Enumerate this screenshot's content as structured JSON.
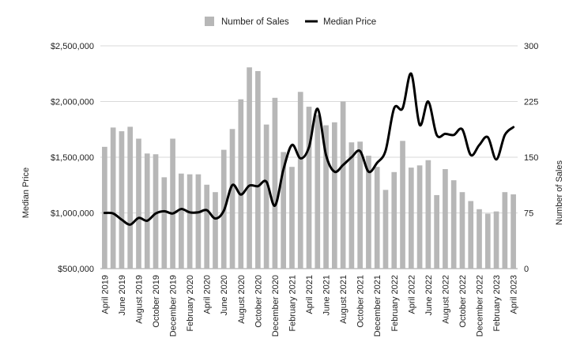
{
  "chart_data": {
    "type": "bar",
    "categories": [
      "April 2019",
      "May 2019",
      "June 2019",
      "July 2019",
      "August 2019",
      "September 2019",
      "October 2019",
      "November 2019",
      "December 2019",
      "January 2020",
      "February 2020",
      "March 2020",
      "April 2020",
      "May 2020",
      "June 2020",
      "July 2020",
      "August 2020",
      "September 2020",
      "October 2020",
      "November 2020",
      "December 2020",
      "January 2021",
      "February 2021",
      "March 2021",
      "April 2021",
      "May 2021",
      "June 2021",
      "July 2021",
      "August 2021",
      "September 2021",
      "October 2021",
      "November 2021",
      "December 2021",
      "January 2022",
      "February 2022",
      "March 2022",
      "April 2022",
      "May 2022",
      "June 2022",
      "July 2022",
      "August 2022",
      "September 2022",
      "October 2022",
      "November 2022",
      "December 2022",
      "January 2023",
      "February 2023",
      "March 2023",
      "April 2023"
    ],
    "x_tick_labels": [
      "April 2019",
      "June 2019",
      "August 2019",
      "October 2019",
      "December 2019",
      "February 2020",
      "April 2020",
      "June 2020",
      "August 2020",
      "October 2020",
      "December 2020",
      "February 2021",
      "April 2021",
      "June 2021",
      "August 2021",
      "October 2021",
      "December 2021",
      "February 2022",
      "April 2022",
      "June 2022",
      "August 2022",
      "October 2022",
      "December 2022",
      "February 2023",
      "April 2023"
    ],
    "series": [
      {
        "name": "Number of Sales",
        "type": "bar",
        "axis": "right",
        "color": "#b7b7b7",
        "values": [
          164,
          190,
          185,
          191,
          175,
          155,
          154,
          123,
          175,
          128,
          127,
          127,
          113,
          103,
          160,
          188,
          228,
          271,
          266,
          194,
          230,
          157,
          137,
          238,
          218,
          207,
          193,
          197,
          225,
          170,
          171,
          152,
          137,
          106,
          130,
          172,
          136,
          139,
          146,
          99,
          134,
          119,
          103,
          91,
          80,
          74,
          77,
          103,
          100
        ]
      },
      {
        "name": "Median Price",
        "type": "line",
        "axis": "left",
        "color": "#000000",
        "values": [
          1000000,
          995000,
          940000,
          895000,
          955000,
          930000,
          995000,
          1015000,
          995000,
          1035000,
          1005000,
          1005000,
          1025000,
          950000,
          1020000,
          1250000,
          1165000,
          1245000,
          1240000,
          1280000,
          1065000,
          1390000,
          1610000,
          1490000,
          1590000,
          1935000,
          1520000,
          1370000,
          1430000,
          1500000,
          1555000,
          1370000,
          1450000,
          1560000,
          1940000,
          1940000,
          2250000,
          1790000,
          2000000,
          1700000,
          1710000,
          1700000,
          1750000,
          1520000,
          1610000,
          1680000,
          1480000,
          1700000,
          1770000
        ]
      }
    ],
    "y_left": {
      "label": "Median Price",
      "min": 500000,
      "max": 2500000,
      "ticks": [
        500000,
        1000000,
        1500000,
        2000000,
        2500000
      ],
      "tick_labels": [
        "$500,000",
        "$1,000,000",
        "$1,500,000",
        "$2,000,000",
        "$2,500,000"
      ]
    },
    "y_right": {
      "label": "Number of Sales",
      "min": 0,
      "max": 300,
      "ticks": [
        0,
        75,
        150,
        225,
        300
      ],
      "tick_labels": [
        "0",
        "75",
        "150",
        "225",
        "300"
      ]
    },
    "grid": true,
    "legend": {
      "position": "top-center",
      "items": [
        {
          "label": "Number of Sales",
          "symbol": "square",
          "color": "#b7b7b7"
        },
        {
          "label": "Median Price",
          "symbol": "line",
          "color": "#000000"
        }
      ]
    }
  }
}
